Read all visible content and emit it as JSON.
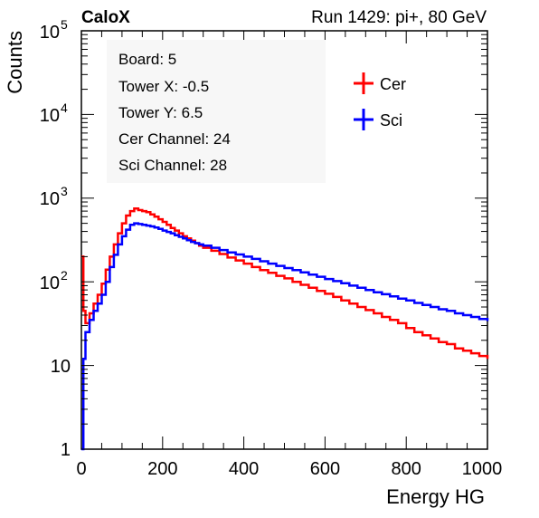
{
  "header": {
    "experiment": "CaloX",
    "run_info": "Run 1429: pi+, 80 GeV"
  },
  "info_box": {
    "lines": [
      "Board: 5",
      "Tower X: -0.5",
      "Tower Y: 6.5",
      "Cer Channel: 24",
      "Sci Channel: 28"
    ]
  },
  "legend": {
    "entries": [
      {
        "label": "Cer",
        "color": "#ff0000"
      },
      {
        "label": "Sci",
        "color": "#0000ff"
      }
    ],
    "placement": "top-right"
  },
  "chart_data": {
    "type": "line",
    "style": "step histogram",
    "xlabel": "Energy HG",
    "ylabel": "Counts",
    "xlim": [
      0,
      1000
    ],
    "ylim": [
      1,
      100000
    ],
    "yscale": "log",
    "grid": false,
    "x_ticks": [
      "0",
      "200",
      "400",
      "600",
      "800",
      "1000"
    ],
    "y_ticks": [
      {
        "base": "1",
        "exp": ""
      },
      {
        "base": "10",
        "exp": ""
      },
      {
        "base": "10",
        "exp": "2"
      },
      {
        "base": "10",
        "exp": "3"
      },
      {
        "base": "10",
        "exp": "4"
      },
      {
        "base": "10",
        "exp": "5"
      }
    ],
    "series": [
      {
        "name": "Cer",
        "color": "#ff0000",
        "x": [
          0,
          5,
          10,
          20,
          30,
          40,
          50,
          60,
          70,
          80,
          90,
          100,
          110,
          120,
          130,
          140,
          150,
          160,
          170,
          180,
          190,
          200,
          210,
          220,
          230,
          240,
          250,
          260,
          270,
          280,
          290,
          300,
          320,
          340,
          360,
          380,
          400,
          420,
          440,
          460,
          480,
          500,
          520,
          540,
          560,
          580,
          600,
          620,
          640,
          660,
          680,
          700,
          720,
          740,
          760,
          780,
          800,
          820,
          840,
          860,
          880,
          900,
          920,
          940,
          960,
          980,
          1000
        ],
        "values": [
          200,
          45,
          32,
          42,
          55,
          70,
          95,
          140,
          200,
          280,
          380,
          500,
          620,
          700,
          750,
          720,
          700,
          680,
          640,
          600,
          560,
          520,
          480,
          440,
          410,
          380,
          350,
          330,
          310,
          290,
          270,
          255,
          235,
          215,
          195,
          180,
          165,
          150,
          138,
          128,
          118,
          110,
          100,
          92,
          85,
          78,
          72,
          66,
          60,
          55,
          50,
          46,
          42,
          38,
          35,
          32,
          28,
          25,
          23,
          21,
          19,
          18,
          16,
          15,
          14,
          13,
          12
        ]
      },
      {
        "name": "Sci",
        "color": "#0000ff",
        "x": [
          0,
          5,
          10,
          20,
          30,
          40,
          50,
          60,
          70,
          80,
          90,
          100,
          110,
          120,
          130,
          140,
          150,
          160,
          170,
          180,
          190,
          200,
          210,
          220,
          230,
          240,
          250,
          260,
          270,
          280,
          290,
          300,
          320,
          340,
          360,
          380,
          400,
          420,
          440,
          460,
          480,
          500,
          520,
          540,
          560,
          580,
          600,
          620,
          640,
          660,
          680,
          700,
          720,
          740,
          760,
          780,
          800,
          820,
          840,
          860,
          880,
          900,
          920,
          940,
          960,
          980,
          1000
        ],
        "values": [
          1,
          12,
          25,
          35,
          45,
          55,
          70,
          100,
          150,
          210,
          280,
          350,
          420,
          480,
          500,
          490,
          480,
          470,
          460,
          445,
          430,
          410,
          395,
          380,
          360,
          345,
          330,
          315,
          300,
          290,
          280,
          270,
          255,
          240,
          225,
          212,
          200,
          188,
          176,
          165,
          155,
          146,
          138,
          130,
          122,
          115,
          108,
          102,
          96,
          90,
          85,
          80,
          75,
          71,
          67,
          63,
          60,
          56,
          53,
          50,
          47,
          45,
          42,
          40,
          38,
          36,
          34
        ]
      }
    ]
  }
}
